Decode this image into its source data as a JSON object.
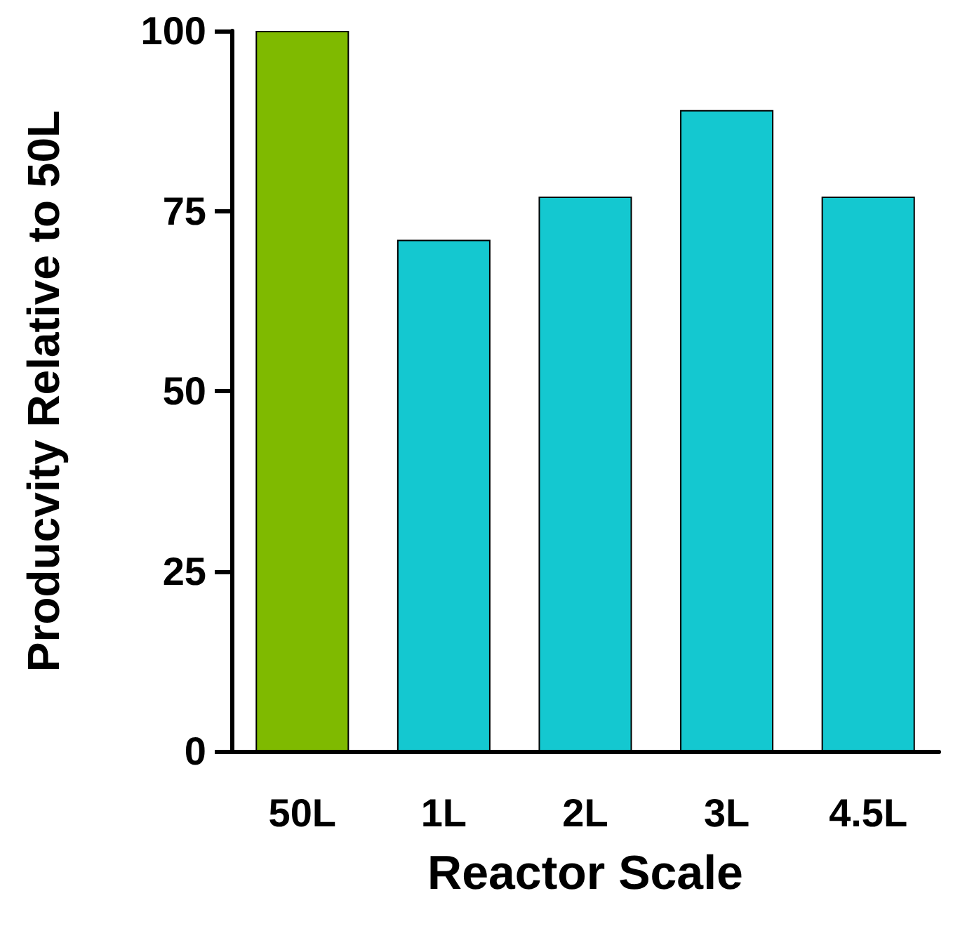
{
  "chart_data": {
    "type": "bar",
    "xlabel": "Reactor Scale",
    "ylabel": "Producvity Relative to 50L",
    "categories": [
      "50L",
      "1L",
      "2L",
      "3L",
      "4.5L"
    ],
    "values": [
      100,
      71,
      77,
      89,
      77
    ],
    "colors": [
      "#7fba00",
      "#14c8d0",
      "#14c8d0",
      "#14c8d0",
      "#14c8d0"
    ],
    "ylim": [
      0,
      100
    ],
    "yticks": [
      0,
      25,
      50,
      75,
      100
    ]
  }
}
